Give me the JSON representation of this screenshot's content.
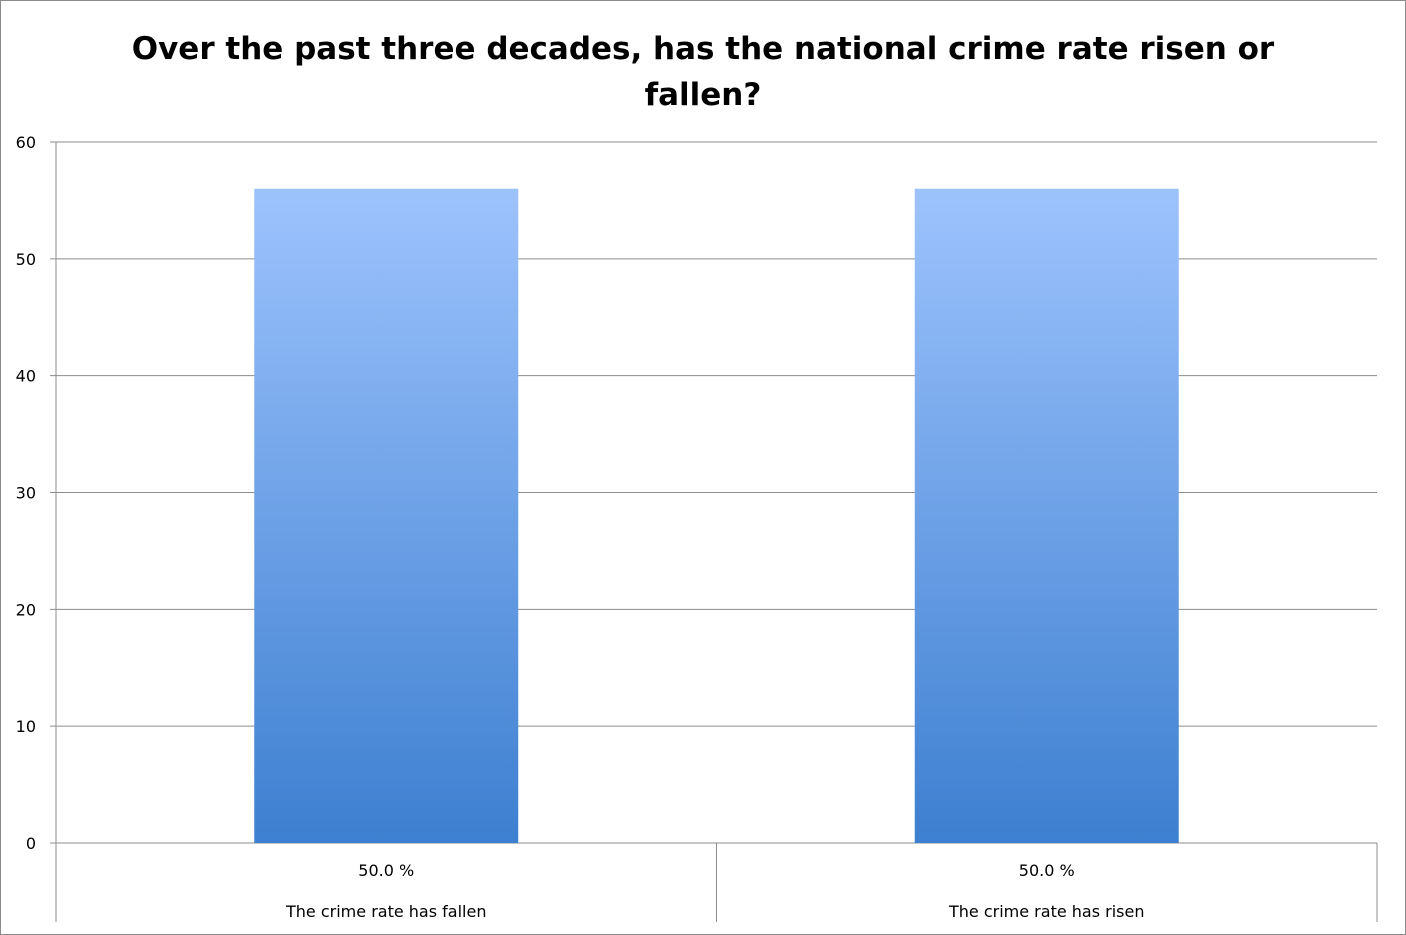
{
  "chart_data": {
    "type": "bar",
    "title_lines": [
      "Over the past three decades, has the national crime rate risen or",
      "fallen?"
    ],
    "categories": [
      "The crime rate has fallen",
      "The crime rate has risen"
    ],
    "values": [
      56,
      56
    ],
    "data_labels": [
      "50.0 %",
      "50.0 %"
    ],
    "ylim": [
      0,
      60
    ],
    "yticks": [
      "0",
      "10",
      "20",
      "30",
      "40",
      "50",
      "60"
    ],
    "grid": true,
    "legend": "none",
    "colors": {
      "bar_top": "#9dc3fd",
      "bar_bottom": "#3d7fd0",
      "grid": "#8c8c8c"
    }
  }
}
